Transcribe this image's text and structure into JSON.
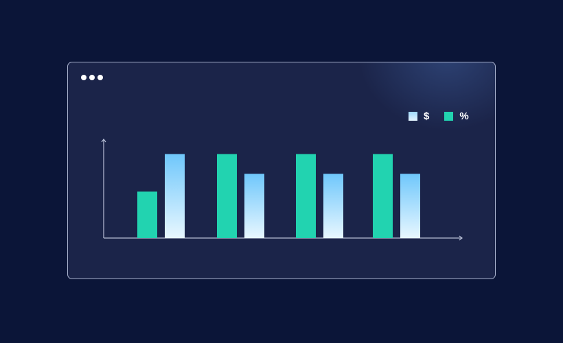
{
  "window": {
    "controls": [
      "close",
      "minimize",
      "maximize"
    ]
  },
  "chart_data": {
    "type": "bar",
    "title": "",
    "xlabel": "",
    "ylabel": "",
    "categories": [
      "",
      "",
      "",
      ""
    ],
    "ylim": [
      0,
      100
    ],
    "grid": false,
    "legend_position": "top-right",
    "series": [
      {
        "name": "%",
        "color": "#22d3b0",
        "values": [
          47,
          85,
          85,
          85
        ]
      },
      {
        "name": "$",
        "color": "#7ccbfb",
        "color_end": "#e6f6ff",
        "values": [
          85,
          65,
          65,
          65
        ]
      }
    ]
  }
}
